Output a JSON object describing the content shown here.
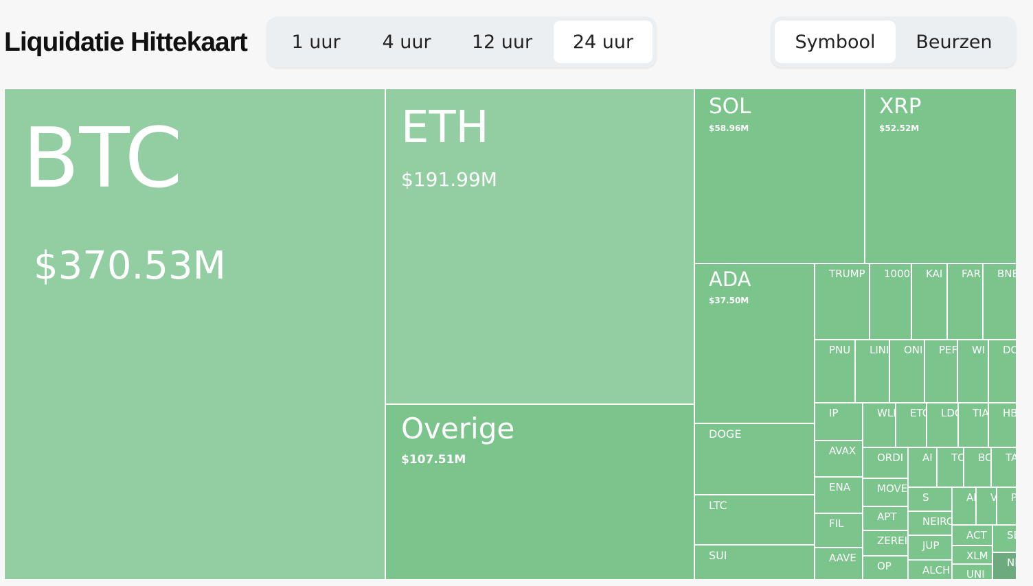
{
  "header": {
    "title": "Liquidatie Hittekaart",
    "time_tabs": [
      {
        "label": "1 uur",
        "active": false
      },
      {
        "label": "4 uur",
        "active": false
      },
      {
        "label": "12 uur",
        "active": false
      },
      {
        "label": "24 uur",
        "active": true
      }
    ],
    "view_tabs": [
      {
        "label": "Symbool",
        "active": true
      },
      {
        "label": "Beurzen",
        "active": false
      }
    ]
  },
  "colors": {
    "tile_light": "#92cea1",
    "tile_mid": "#7bc58c",
    "tile_dark": "#6daa7d",
    "border": "#ffffff",
    "text": "#ffffff"
  },
  "chart_data": {
    "type": "treemap",
    "unit": "USD",
    "items": [
      {
        "name": "BTC",
        "label": "$370.53M",
        "value": 370.53
      },
      {
        "name": "ETH",
        "label": "$191.99M",
        "value": 191.99
      },
      {
        "name": "Overige",
        "label": "$107.51M",
        "value": 107.51
      },
      {
        "name": "SOL",
        "label": "$58.96M",
        "value": 58.96
      },
      {
        "name": "XRP",
        "label": "$52.52M",
        "value": 52.52
      },
      {
        "name": "ADA",
        "label": "$37.50M",
        "value": 37.5
      },
      {
        "name": "DOGE"
      },
      {
        "name": "LTC"
      },
      {
        "name": "SUI"
      },
      {
        "name": "TRUMP"
      },
      {
        "name": "1000"
      },
      {
        "name": "KAI"
      },
      {
        "name": "FAR"
      },
      {
        "name": "BNE"
      },
      {
        "name": "PNU"
      },
      {
        "name": "LINI"
      },
      {
        "name": "ONI"
      },
      {
        "name": "PEF"
      },
      {
        "name": "WI"
      },
      {
        "name": "DO"
      },
      {
        "name": "IP"
      },
      {
        "name": "WLI"
      },
      {
        "name": "ETC"
      },
      {
        "name": "LDC"
      },
      {
        "name": "TIA"
      },
      {
        "name": "HB"
      },
      {
        "name": "AVAX"
      },
      {
        "name": "ORDI"
      },
      {
        "name": "AI"
      },
      {
        "name": "TO"
      },
      {
        "name": "BC"
      },
      {
        "name": "TA"
      },
      {
        "name": "ENA"
      },
      {
        "name": "MOVE"
      },
      {
        "name": "S"
      },
      {
        "name": "AI"
      },
      {
        "name": "V"
      },
      {
        "name": "P"
      },
      {
        "name": "APT"
      },
      {
        "name": "NEIRC"
      },
      {
        "name": "ACT"
      },
      {
        "name": "SE"
      },
      {
        "name": "FIL"
      },
      {
        "name": "ZEREI"
      },
      {
        "name": "JUP"
      },
      {
        "name": "XLM"
      },
      {
        "name": "AAVE"
      },
      {
        "name": "OP"
      },
      {
        "name": "ALCH"
      },
      {
        "name": "UNI"
      },
      {
        "name": "NE"
      }
    ]
  }
}
